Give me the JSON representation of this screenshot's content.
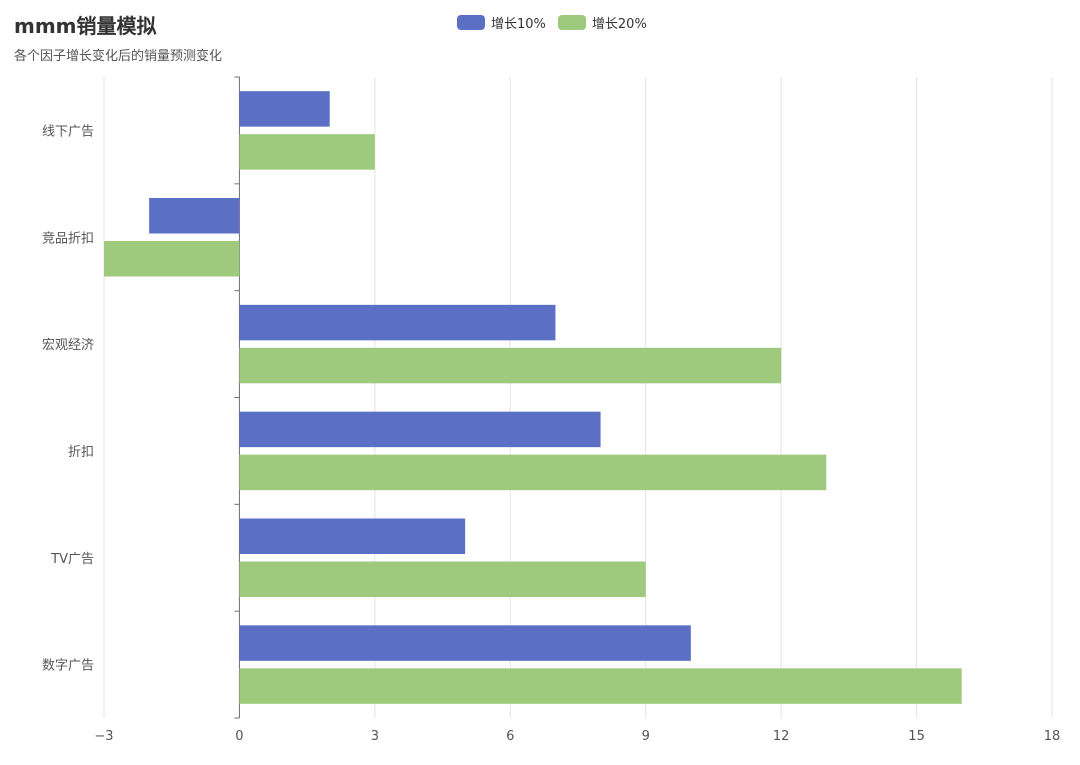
{
  "colors": {
    "s1": "#5b70c4",
    "s2": "#9fca7d"
  },
  "chart_data": {
    "type": "bar",
    "orientation": "horizontal",
    "title": "mmm销量模拟",
    "subtitle": "各个因子增长变化后的销量预测变化",
    "categories": [
      "线下广告",
      "竞品折扣",
      "宏观经济",
      "折扣",
      "TV广告",
      "数字广告"
    ],
    "series": [
      {
        "name": "增长10%",
        "values": [
          2,
          -2,
          7,
          8,
          5,
          10
        ]
      },
      {
        "name": "增长20%",
        "values": [
          3,
          -3,
          12,
          13,
          9,
          16
        ]
      }
    ],
    "xlim": [
      -3,
      18
    ],
    "xticks": [
      -3,
      0,
      3,
      6,
      9,
      12,
      15,
      18
    ],
    "xtick_labels": [
      "−3",
      "0",
      "3",
      "6",
      "9",
      "12",
      "15",
      "18"
    ],
    "grid": true,
    "legend_position": "top"
  }
}
